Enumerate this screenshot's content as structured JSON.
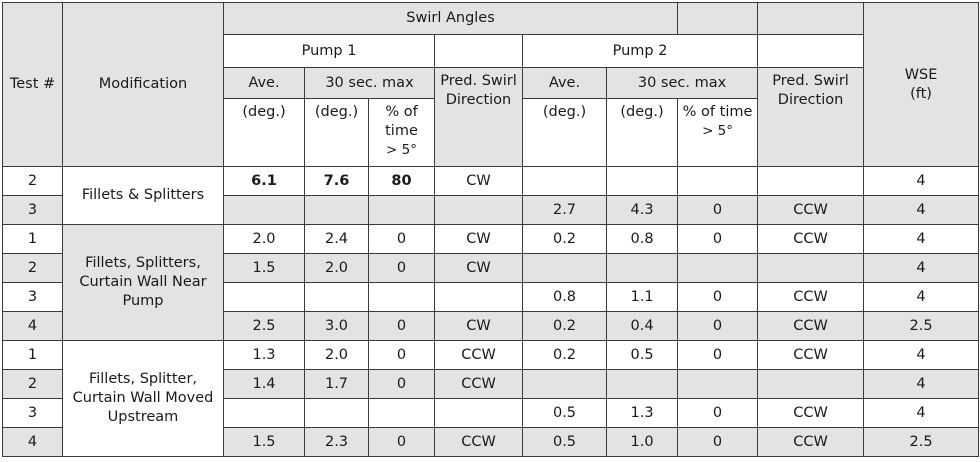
{
  "header": {
    "test_num": "Test #",
    "modification": "Modification",
    "swirl_angles": "Swirl Angles",
    "pump1": "Pump 1",
    "pump2": "Pump 2",
    "ave": "Ave.",
    "max30": "30 sec. max",
    "pred_swirl": "Pred. Swirl Direction",
    "deg": "(deg.)",
    "pct_time": "% of time",
    "gt5": "> 5°",
    "wse": "WSE",
    "wse_unit": "(ft)"
  },
  "groups": [
    {
      "modification": "Fillets & Splitters"
    },
    {
      "modification": "Fillets, Splitters, Curtain Wall Near Pump"
    },
    {
      "modification": "Fillets, Splitter, Curtain Wall Moved Upstream"
    }
  ],
  "rows": [
    {
      "test": "2",
      "p1_ave": "6.1",
      "p1_max": "7.6",
      "p1_pct": "80",
      "p1_dir": "CW",
      "p2_ave": "",
      "p2_max": "",
      "p2_pct": "",
      "p2_dir": "",
      "wse": "4"
    },
    {
      "test": "3",
      "p1_ave": "",
      "p1_max": "",
      "p1_pct": "",
      "p1_dir": "",
      "p2_ave": "2.7",
      "p2_max": "4.3",
      "p2_pct": "0",
      "p2_dir": "CCW",
      "wse": "4"
    },
    {
      "test": "1",
      "p1_ave": "2.0",
      "p1_max": "2.4",
      "p1_pct": "0",
      "p1_dir": "CW",
      "p2_ave": "0.2",
      "p2_max": "0.8",
      "p2_pct": "0",
      "p2_dir": "CCW",
      "wse": "4"
    },
    {
      "test": "2",
      "p1_ave": "1.5",
      "p1_max": "2.0",
      "p1_pct": "0",
      "p1_dir": "CW",
      "p2_ave": "",
      "p2_max": "",
      "p2_pct": "",
      "p2_dir": "",
      "wse": "4"
    },
    {
      "test": "3",
      "p1_ave": "",
      "p1_max": "",
      "p1_pct": "",
      "p1_dir": "",
      "p2_ave": "0.8",
      "p2_max": "1.1",
      "p2_pct": "0",
      "p2_dir": "CCW",
      "wse": "4"
    },
    {
      "test": "4",
      "p1_ave": "2.5",
      "p1_max": "3.0",
      "p1_pct": "0",
      "p1_dir": "CW",
      "p2_ave": "0.2",
      "p2_max": "0.4",
      "p2_pct": "0",
      "p2_dir": "CCW",
      "wse": "2.5"
    },
    {
      "test": "1",
      "p1_ave": "1.3",
      "p1_max": "2.0",
      "p1_pct": "0",
      "p1_dir": "CCW",
      "p2_ave": "0.2",
      "p2_max": "0.5",
      "p2_pct": "0",
      "p2_dir": "CCW",
      "wse": "4"
    },
    {
      "test": "2",
      "p1_ave": "1.4",
      "p1_max": "1.7",
      "p1_pct": "0",
      "p1_dir": "CCW",
      "p2_ave": "",
      "p2_max": "",
      "p2_pct": "",
      "p2_dir": "",
      "wse": "4"
    },
    {
      "test": "3",
      "p1_ave": "",
      "p1_max": "",
      "p1_pct": "",
      "p1_dir": "",
      "p2_ave": "0.5",
      "p2_max": "1.3",
      "p2_pct": "0",
      "p2_dir": "CCW",
      "wse": "4"
    },
    {
      "test": "4",
      "p1_ave": "1.5",
      "p1_max": "2.3",
      "p1_pct": "0",
      "p1_dir": "CCW",
      "p2_ave": "0.5",
      "p2_max": "1.0",
      "p2_pct": "0",
      "p2_dir": "CCW",
      "wse": "2.5"
    }
  ]
}
